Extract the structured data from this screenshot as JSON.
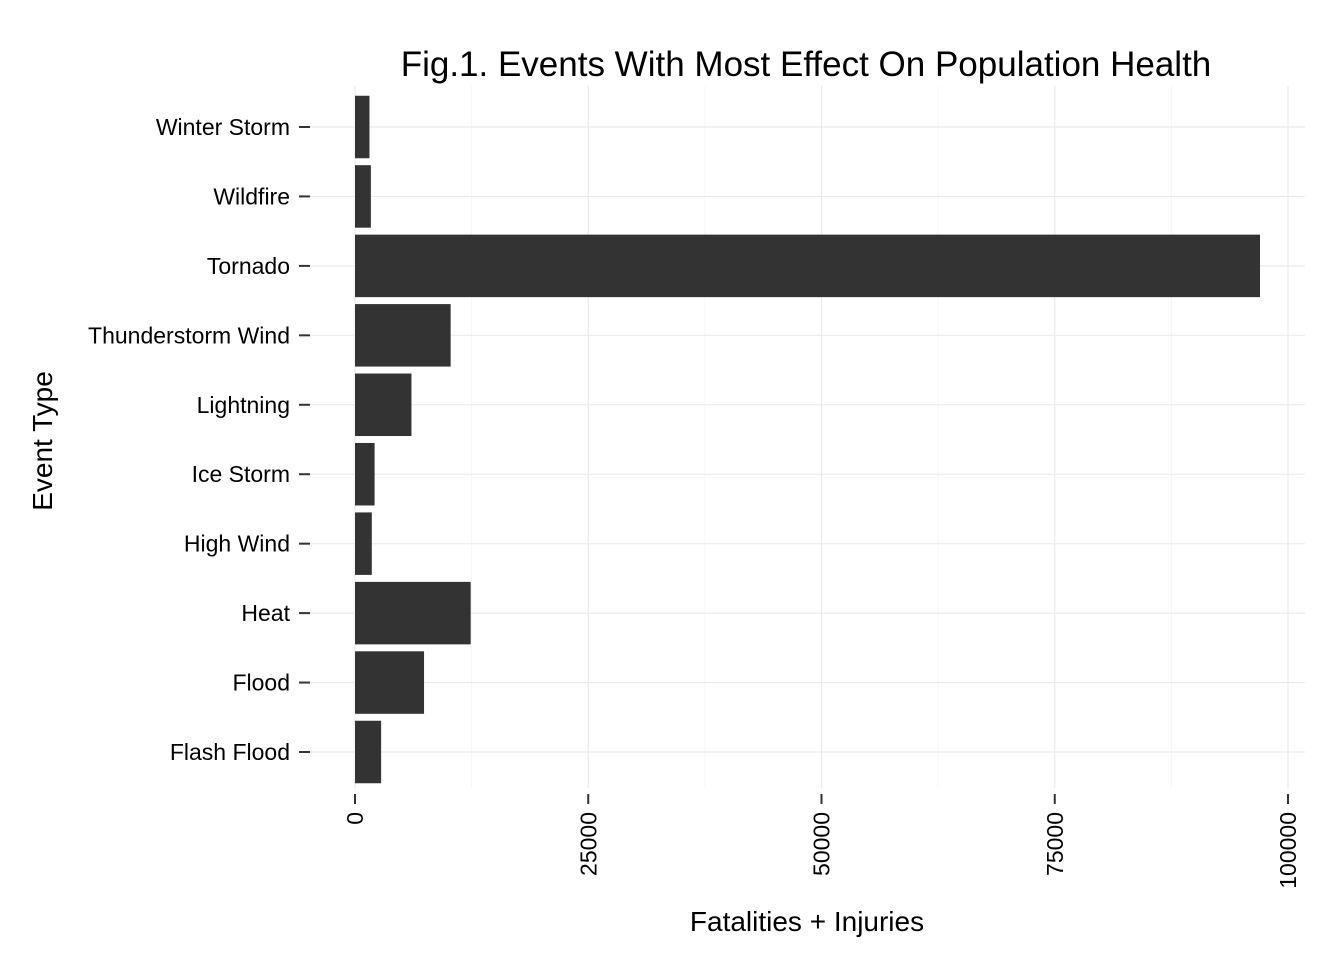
{
  "chart_data": {
    "type": "bar",
    "orientation": "horizontal",
    "title": "Fig.1. Events With Most Effect On Population Health",
    "xlabel": "Fatalities + Injuries",
    "ylabel": "Event Type",
    "categories": [
      "Flash Flood",
      "Flood",
      "Heat",
      "High Wind",
      "Ice Storm",
      "Lightning",
      "Thunderstorm Wind",
      "Tornado",
      "Wildfire",
      "Winter Storm"
    ],
    "values": [
      2800,
      7400,
      12400,
      1800,
      2100,
      6050,
      10250,
      97000,
      1700,
      1550
    ],
    "xlim": [
      0,
      100000
    ],
    "xticks": [
      0,
      25000,
      50000,
      75000,
      100000
    ],
    "xtick_labels": [
      "0",
      "25000",
      "50000",
      "75000",
      "100000"
    ],
    "xtick_rotation": "vertical",
    "grid": true,
    "bar_color": "#333333"
  }
}
